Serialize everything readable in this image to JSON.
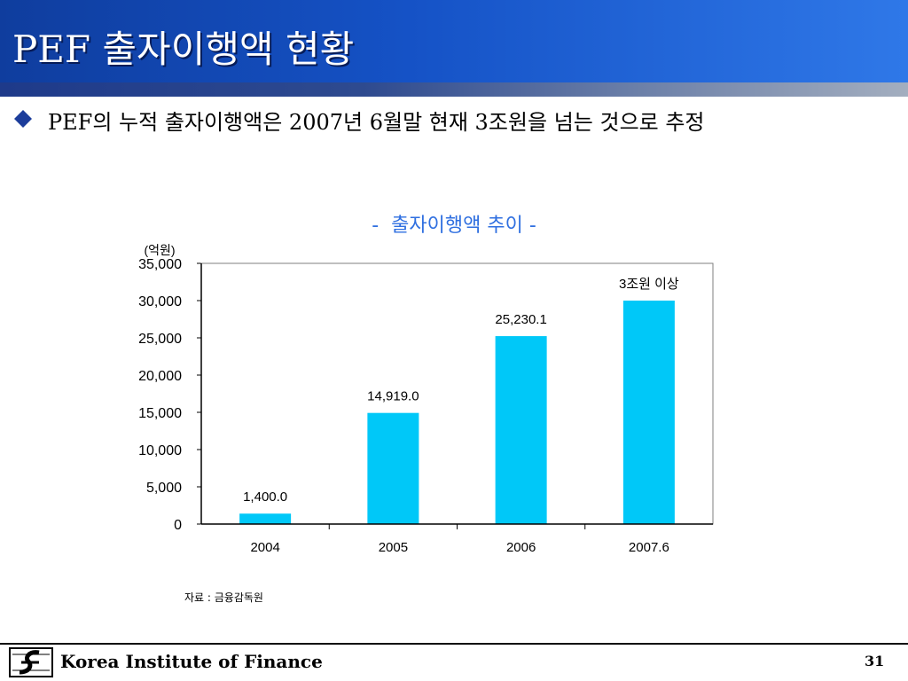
{
  "header": {
    "title": "PEF 출자이행액 현황"
  },
  "bullet": {
    "text": "PEF의 누적 출자이행액은 2007년 6월말 현재 3조원을 넘는 것으로 추정"
  },
  "chart_data": {
    "type": "bar",
    "title": "-  출자이행액 추이 -",
    "unit_label": "(억원)",
    "categories": [
      "2004",
      "2005",
      "2006",
      "2007.6"
    ],
    "values": [
      1400.0,
      14919.0,
      25230.1,
      30000
    ],
    "data_labels": [
      "1,400.0",
      "14,919.0",
      "25,230.1",
      "3조원 이상"
    ],
    "yticks": [
      0,
      5000,
      10000,
      15000,
      20000,
      25000,
      30000,
      35000
    ],
    "ytick_labels": [
      "0",
      "5,000",
      "10,000",
      "15,000",
      "20,000",
      "25,000",
      "30,000",
      "35,000"
    ],
    "ylim": [
      0,
      35000
    ],
    "bar_color": "#00c8f8",
    "grid": false
  },
  "source": "자료 : 금융감독원",
  "footer": {
    "org": "Korea Institute of Finance",
    "page": "31"
  },
  "colors": {
    "header_bg": "#1552c6",
    "chart_title": "#2f6fe0",
    "bullet": "#1c3d9b"
  }
}
